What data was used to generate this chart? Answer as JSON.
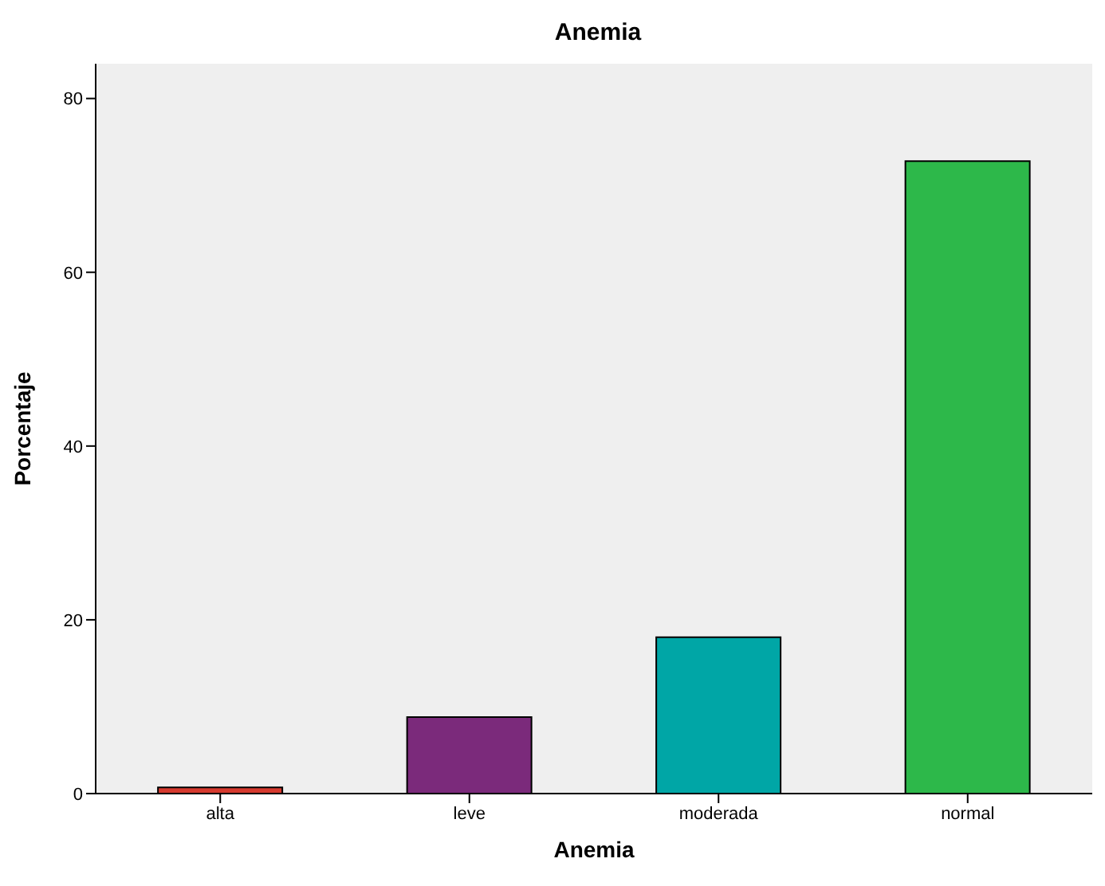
{
  "chart_data": {
    "type": "bar",
    "title": "Anemia",
    "xlabel": "Anemia",
    "ylabel": "Porcentaje",
    "categories": [
      "alta",
      "leve",
      "moderada",
      "normal"
    ],
    "values": [
      0.7,
      8.8,
      18.0,
      72.8
    ],
    "colors": [
      "#d63a2f",
      "#7b2a7b",
      "#00a6a6",
      "#2db84a"
    ],
    "ylim": [
      0,
      84
    ],
    "yticks": [
      0,
      20,
      40,
      60,
      80
    ],
    "grid": false
  }
}
